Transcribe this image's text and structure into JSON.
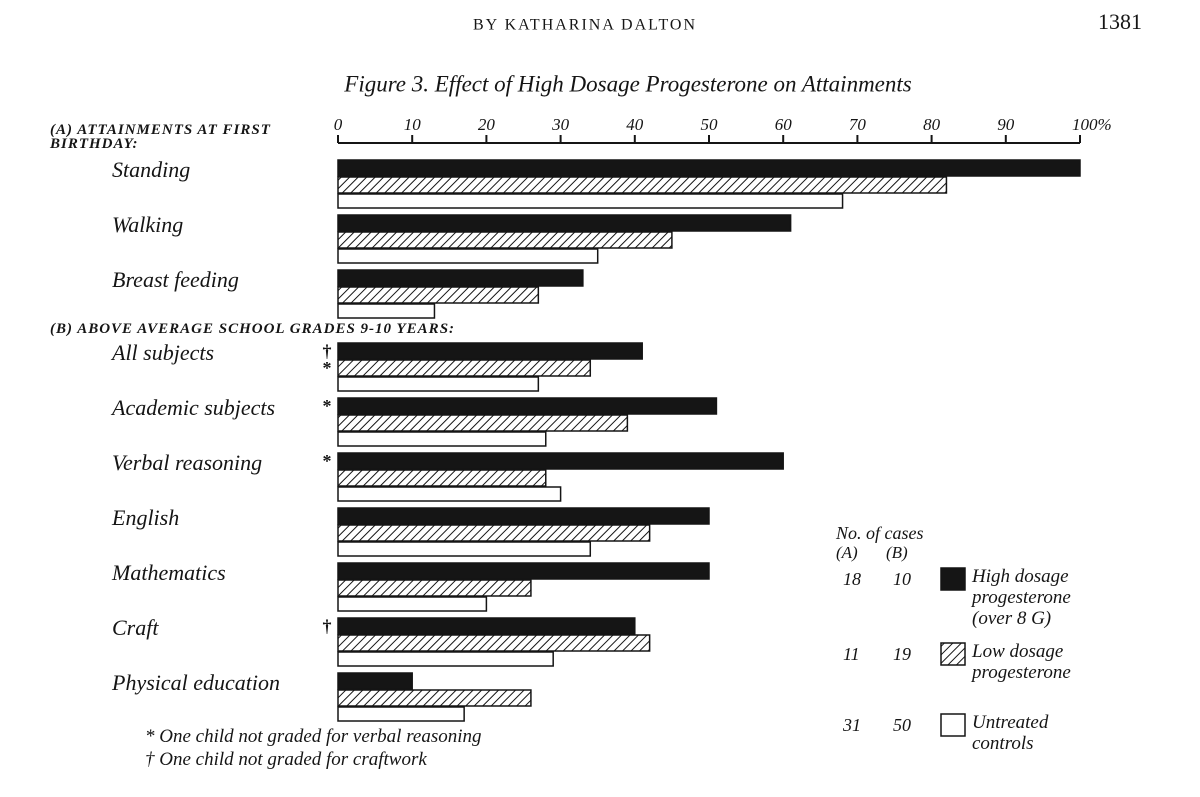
{
  "header": {
    "author": "BY KATHARINA DALTON",
    "page": "1381"
  },
  "chart_data": {
    "type": "grouped-hbar",
    "title": "Figure 3. Effect of High Dosage Progesterone on Attainments",
    "xlim": [
      0,
      100
    ],
    "xticks": [
      0,
      10,
      20,
      30,
      40,
      50,
      60,
      70,
      80,
      90,
      {
        "value": 100,
        "label": "100%"
      }
    ],
    "groups": [
      {
        "label": "(A) ATTAINMENTS AT FIRST BIRTHDAY:",
        "categories": [
          "Standing",
          "Walking",
          "Breast feeding"
        ]
      },
      {
        "label": "(B) ABOVE AVERAGE SCHOOL GRADES 9-10 YEARS:",
        "categories": [
          "All subjects",
          "Academic subjects",
          "Verbal reasoning",
          "English",
          "Mathematics",
          "Craft",
          "Physical education"
        ],
        "markers": [
          [
            "†",
            "*"
          ],
          [
            "*"
          ],
          [
            "*"
          ],
          null,
          null,
          [
            "†"
          ],
          null
        ]
      }
    ],
    "legend_title": "No. of cases",
    "legend_columns": [
      "(A)",
      "(B)"
    ],
    "series": [
      {
        "name": "High dosage progesterone (over 8 G)",
        "color": "#151515",
        "fill": "solid",
        "cases": [
          18,
          10
        ],
        "values": [
          100,
          61,
          33,
          41,
          51,
          60,
          50,
          50,
          40,
          10
        ]
      },
      {
        "name": "Low dosage progesterone",
        "color": "#151515",
        "fill": "hatched",
        "cases": [
          11,
          19
        ],
        "values": [
          82,
          45,
          27,
          34,
          39,
          28,
          42,
          26,
          42,
          26
        ]
      },
      {
        "name": "Untreated controls",
        "color": "#151515",
        "fill": "open",
        "cases": [
          31,
          50
        ],
        "values": [
          68,
          35,
          13,
          27,
          28,
          30,
          34,
          20,
          29,
          17
        ]
      }
    ],
    "footnotes": [
      "* One child not graded for verbal reasoning",
      "† One child not graded for craftwork"
    ]
  }
}
